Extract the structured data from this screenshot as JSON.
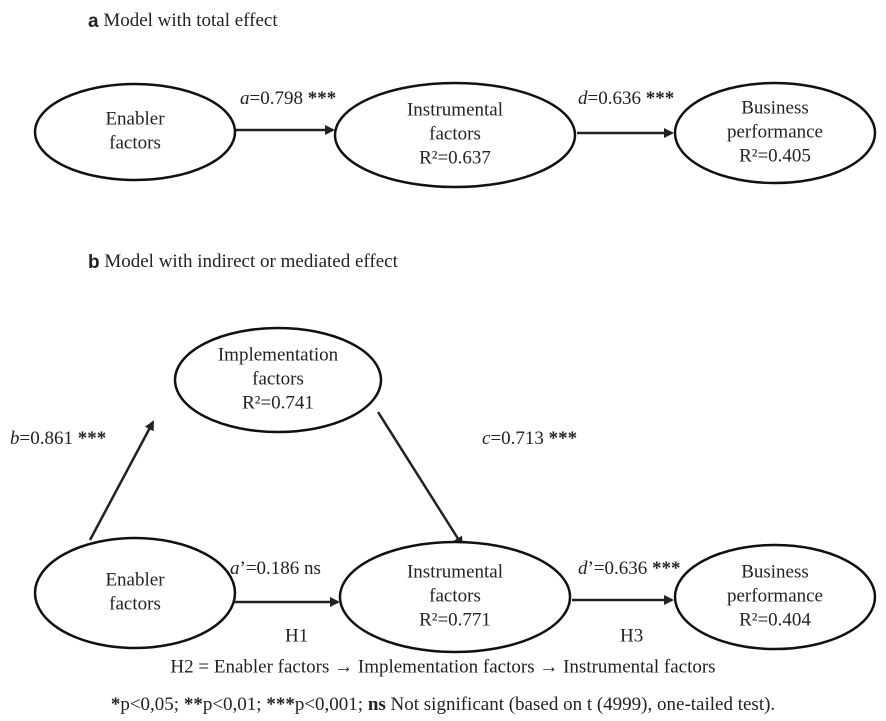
{
  "panels": [
    {
      "letter": "a",
      "title": "Model with total effect",
      "nodes": [
        {
          "lines": [
            "Enabler",
            "factors"
          ]
        },
        {
          "lines": [
            "Instrumental",
            "factors"
          ],
          "r2": "R²=0.637"
        },
        {
          "lines": [
            "Business",
            "performance"
          ],
          "r2": "R²=0.405"
        }
      ],
      "edges": [
        {
          "symbol": "a",
          "value": "=0.798",
          "sig": "***"
        },
        {
          "symbol": "d",
          "value": "=0.636",
          "sig": "***"
        }
      ]
    },
    {
      "letter": "b",
      "title": "Model with indirect or mediated effect",
      "nodes": [
        {
          "lines": [
            "Implementation",
            "factors"
          ],
          "r2": "R²=0.741"
        },
        {
          "lines": [
            "Enabler",
            "factors"
          ]
        },
        {
          "lines": [
            "Instrumental",
            "factors"
          ],
          "r2": "R²=0.771"
        },
        {
          "lines": [
            "Business",
            "performance"
          ],
          "r2": "R²=0.404"
        }
      ],
      "edges": [
        {
          "symbol": "b",
          "value": "=0.861",
          "sig": "***"
        },
        {
          "symbol": "c",
          "value": "=0.713",
          "sig": "***"
        },
        {
          "symbol": "a",
          "value": "’=0.186",
          "sig": "ns",
          "hypothesis": "H1"
        },
        {
          "symbol": "d",
          "value": "’=0.636",
          "sig": "***",
          "hypothesis": "H3"
        }
      ]
    }
  ],
  "footer": {
    "h2": "H2 = Enabler factors → Implementation factors → Instrumental factors",
    "note": [
      {
        "text": "*",
        "bold": true
      },
      {
        "text": "p<0,05; ",
        "bold": false
      },
      {
        "text": "**",
        "bold": true
      },
      {
        "text": "p<0,01; ",
        "bold": false
      },
      {
        "text": "***",
        "bold": true
      },
      {
        "text": "p<0,001; ",
        "bold": false
      },
      {
        "text": "ns",
        "bold": true
      },
      {
        "text": " Not significant (based on t (4999), one-tailed test).",
        "bold": false
      }
    ]
  }
}
